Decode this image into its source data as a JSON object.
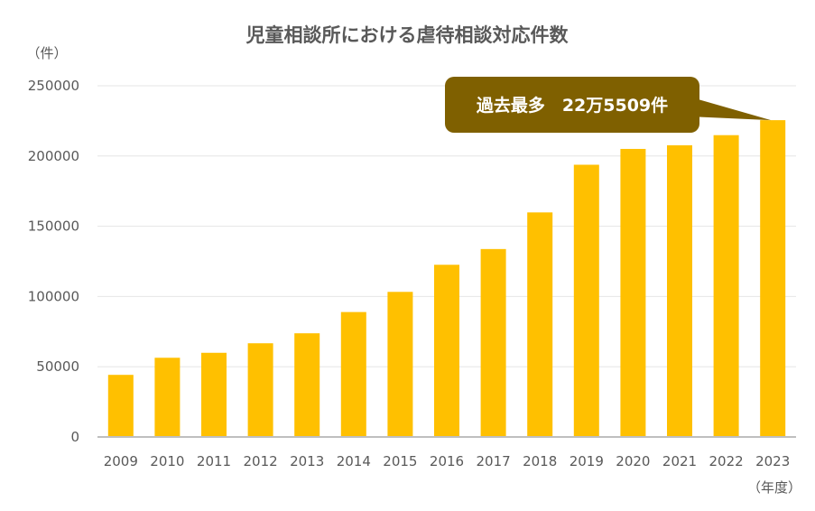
{
  "chart_data": {
    "type": "bar",
    "title": "児童相談所における虐待相談対応件数",
    "ylabel": "（件）",
    "xlabel": "（年度）",
    "categories": [
      "2009",
      "2010",
      "2011",
      "2012",
      "2013",
      "2014",
      "2015",
      "2016",
      "2017",
      "2018",
      "2019",
      "2020",
      "2021",
      "2022",
      "2023"
    ],
    "values": [
      44211,
      56384,
      59919,
      66701,
      73802,
      88931,
      103286,
      122575,
      133778,
      159838,
      193780,
      205044,
      207660,
      214843,
      225509
    ],
    "ylim": [
      0,
      250000
    ],
    "yticks": [
      "0",
      "50000",
      "100000",
      "150000",
      "200000",
      "250000"
    ],
    "bar_color": "#FFC000",
    "grid": true,
    "annotation": {
      "text": "過去最多　22万5509件",
      "target_category": "2023",
      "color": "#7F6000"
    }
  }
}
